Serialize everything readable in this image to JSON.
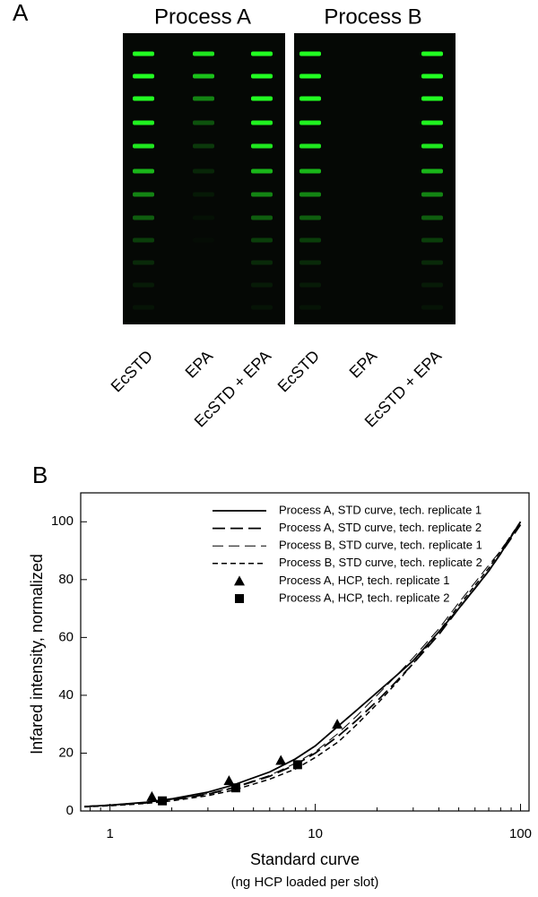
{
  "panel_a": {
    "label": "A",
    "titles": [
      "Process A",
      "Process B"
    ],
    "lanes": [
      "EcSTD",
      "EPA",
      "EcSTD + EPA",
      "EcSTD",
      "EPA",
      "EcSTD + EPA"
    ]
  },
  "chart_data": {
    "type": "line",
    "panel_label": "B",
    "xlabel": "Standard curve",
    "xlabel_sub": "(ng HCP loaded per slot)",
    "ylabel": "Infared intensity, normalized",
    "xscale": "log",
    "xlim": [
      0.72,
      110
    ],
    "xticks": [
      1,
      10,
      100
    ],
    "xminor_ticks": [
      0.8,
      0.9,
      2,
      3,
      4,
      5,
      6,
      7,
      8,
      9,
      20,
      30,
      40,
      50,
      60,
      70,
      80,
      90
    ],
    "ylim": [
      0,
      110
    ],
    "yticks": [
      0,
      20,
      40,
      60,
      80,
      100
    ],
    "legend": "top-left",
    "x": [
      0.75,
      1,
      1.5,
      2,
      3,
      4,
      6,
      8,
      10,
      13,
      16,
      20,
      25,
      30,
      40,
      50,
      60,
      70,
      80,
      100
    ],
    "series": [
      {
        "name": "Process A, STD curve, tech. replicate 1",
        "color": "#000000",
        "style": "solid",
        "values": [
          1.5,
          2.0,
          3.0,
          4.2,
          6.5,
          9.0,
          13.5,
          18.0,
          22.5,
          29.5,
          35,
          41,
          47,
          52,
          62,
          70,
          77,
          83,
          89,
          100
        ]
      },
      {
        "name": "Process A, STD curve, tech. replicate 2",
        "color": "#000000",
        "style": "longdash",
        "values": [
          1.5,
          2.0,
          2.8,
          3.8,
          5.8,
          8.0,
          12.0,
          16.0,
          20.0,
          26.0,
          31.5,
          38,
          45,
          51,
          61,
          70,
          77,
          83,
          89,
          99
        ]
      },
      {
        "name": "Process B, STD curve, tech. replicate 1",
        "color": "#000000",
        "style": "thindash",
        "values": [
          1.6,
          2.1,
          3.0,
          4.0,
          6.0,
          8.2,
          12.3,
          16.5,
          20.5,
          27,
          33,
          40,
          47,
          53,
          63,
          72,
          79,
          85,
          90,
          100
        ]
      },
      {
        "name": "Process B, STD curve, tech. replicate 2",
        "color": "#000000",
        "style": "shortdash",
        "values": [
          1.4,
          1.8,
          2.6,
          3.5,
          5.3,
          7.2,
          11,
          14.5,
          18.5,
          24,
          30,
          37,
          44.5,
          51,
          62,
          71,
          78,
          84,
          90,
          100
        ]
      }
    ],
    "points": [
      {
        "name": "Process A, HCP, tech. replicate 1",
        "color": "#000000",
        "marker": "triangle",
        "x": [
          1.6,
          3.8,
          6.8,
          12.8
        ],
        "values": [
          5,
          10.5,
          17.5,
          30
        ]
      },
      {
        "name": "Process A, HCP, tech. replicate 2",
        "color": "#000000",
        "marker": "square",
        "x": [
          1.8,
          4.1,
          8.2
        ],
        "values": [
          3.5,
          8,
          16
        ]
      }
    ]
  }
}
